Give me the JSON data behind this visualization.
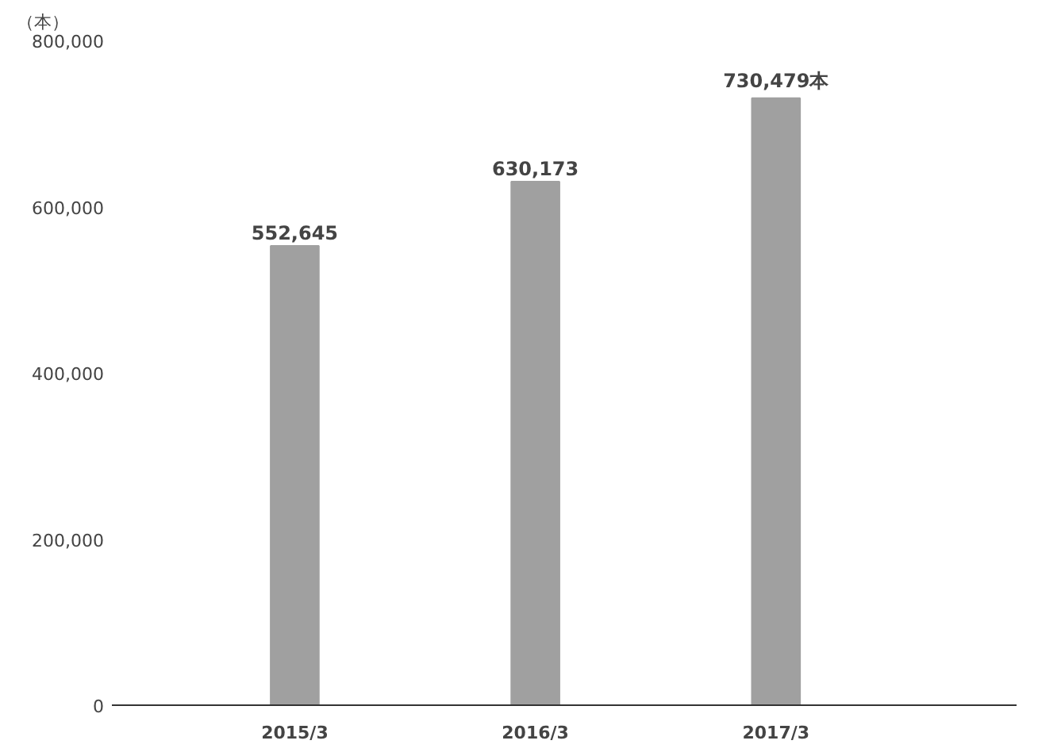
{
  "chart_data": {
    "type": "bar",
    "ylabel": "（本）",
    "categories": [
      "2015/3",
      "2016/3",
      "2017/3"
    ],
    "values": [
      552645,
      630173,
      730479
    ],
    "value_labels": [
      "552,645",
      "630,173",
      "730,479本"
    ],
    "color": "#a0a0a0",
    "ylim": [
      0,
      800000
    ],
    "yticks": [
      0,
      {
        "value": 200000,
        "label": "200,000"
      },
      {
        "value": 400000,
        "label": "400,000"
      },
      {
        "value": 600000,
        "label": "600,000"
      },
      {
        "value": 800000,
        "label": "800,000"
      }
    ],
    "grid": false
  }
}
